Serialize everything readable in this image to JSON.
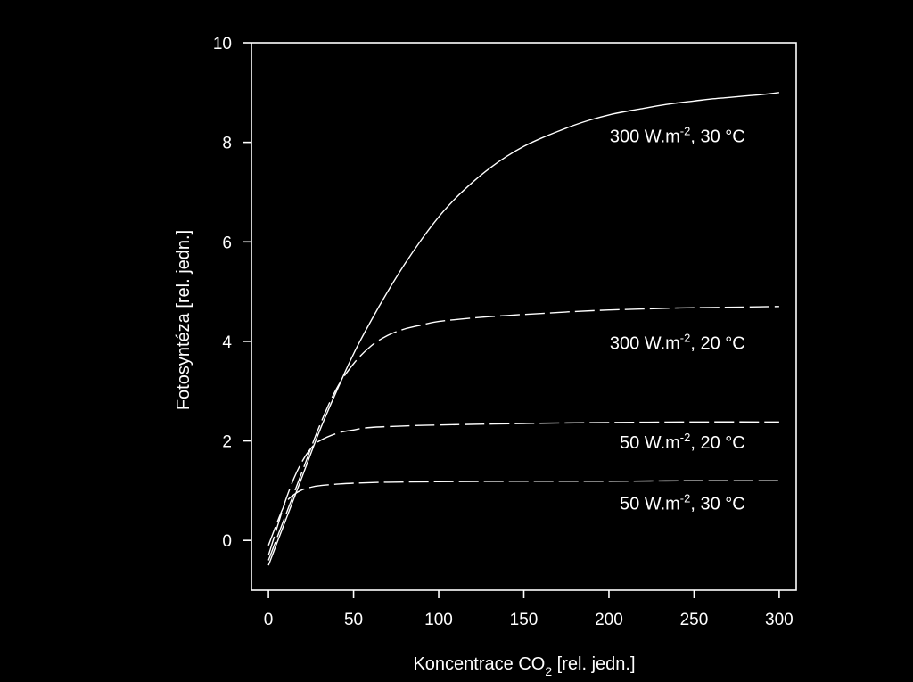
{
  "chart_data": {
    "type": "line",
    "xlabel": {
      "main": "Koncentrace CO",
      "sub": "2",
      "rest": " [rel. jedn.]"
    },
    "ylabel": "Fotosyntéza [rel. jedn.]",
    "xlim": [
      -10,
      310
    ],
    "ylim": [
      -1,
      10
    ],
    "xticks": [
      0,
      50,
      100,
      150,
      200,
      250,
      300
    ],
    "yticks": [
      0,
      2,
      4,
      6,
      8,
      10
    ],
    "grid": false,
    "colors": {
      "background": "#000000",
      "foreground": "#ffffff"
    },
    "series": [
      {
        "label": {
          "prefix": "300 W.m",
          "sup": "-2",
          "suffix": ", 30 °C"
        },
        "style": "solid",
        "x": [
          0,
          10,
          20,
          30,
          40,
          50,
          60,
          70,
          80,
          90,
          100,
          110,
          120,
          130,
          140,
          150,
          160,
          170,
          180,
          190,
          200,
          210,
          220,
          230,
          240,
          250,
          260,
          270,
          280,
          290,
          300
        ],
        "y": [
          -0.5,
          0.4,
          1.3,
          2.2,
          3.0,
          3.75,
          4.4,
          5.0,
          5.55,
          6.05,
          6.5,
          6.88,
          7.2,
          7.48,
          7.72,
          7.92,
          8.08,
          8.22,
          8.35,
          8.46,
          8.55,
          8.62,
          8.68,
          8.74,
          8.79,
          8.83,
          8.87,
          8.9,
          8.93,
          8.96,
          9.0
        ]
      },
      {
        "label": {
          "prefix": "300 W.m",
          "sup": "-2",
          "suffix": ", 20 °C"
        },
        "style": "dashed",
        "x": [
          0,
          10,
          20,
          30,
          40,
          50,
          60,
          70,
          80,
          90,
          100,
          120,
          140,
          160,
          180,
          200,
          220,
          240,
          260,
          280,
          300
        ],
        "y": [
          -0.4,
          0.5,
          1.4,
          2.3,
          3.05,
          3.55,
          3.9,
          4.12,
          4.25,
          4.33,
          4.4,
          4.47,
          4.52,
          4.56,
          4.6,
          4.63,
          4.65,
          4.67,
          4.68,
          4.69,
          4.7
        ]
      },
      {
        "label": {
          "prefix": "50 W.m",
          "sup": "-2",
          "suffix": ", 20 °C"
        },
        "style": "dashed",
        "x": [
          0,
          5,
          10,
          15,
          20,
          25,
          30,
          40,
          50,
          60,
          80,
          100,
          150,
          200,
          250,
          300
        ],
        "y": [
          -0.3,
          0.25,
          0.8,
          1.25,
          1.6,
          1.85,
          2.0,
          2.15,
          2.22,
          2.27,
          2.3,
          2.32,
          2.35,
          2.37,
          2.38,
          2.38
        ]
      },
      {
        "label": {
          "prefix": "50 W.m",
          "sup": "-2",
          "suffix": ", 30 °C"
        },
        "style": "dashed",
        "x": [
          0,
          5,
          10,
          15,
          20,
          25,
          30,
          40,
          50,
          70,
          100,
          150,
          200,
          250,
          300
        ],
        "y": [
          -0.1,
          0.35,
          0.75,
          0.92,
          1.02,
          1.07,
          1.1,
          1.13,
          1.15,
          1.17,
          1.18,
          1.19,
          1.19,
          1.2,
          1.2
        ]
      }
    ]
  }
}
